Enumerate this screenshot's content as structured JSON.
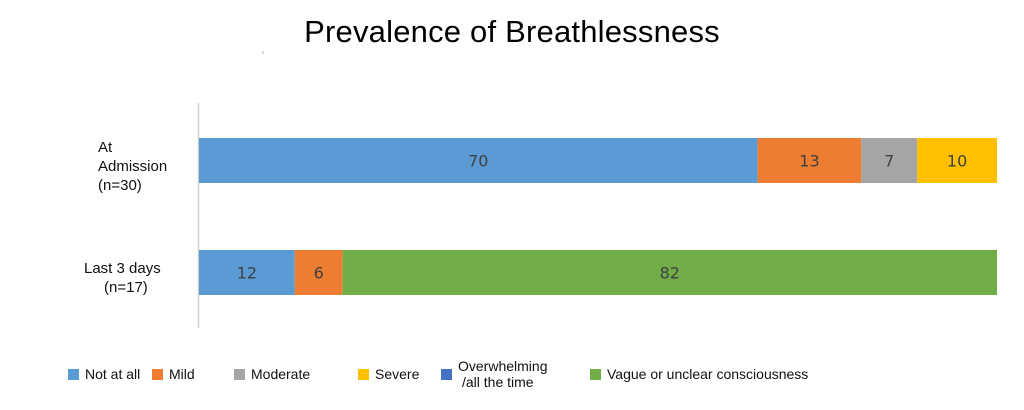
{
  "chart_data": {
    "type": "bar",
    "orientation": "horizontal",
    "stacked": true,
    "title": "Prevalence of Breathlessness",
    "categories": [
      {
        "lines": [
          "At",
          "Admission",
          "(n=30)"
        ]
      },
      {
        "lines": [
          "Last 3 days",
          "(n=17)"
        ]
      }
    ],
    "series": [
      {
        "name": "Not at all",
        "color": "#5B9BD5",
        "values": [
          70,
          12
        ]
      },
      {
        "name": "Mild",
        "color": "#ED7D31",
        "values": [
          13,
          6
        ]
      },
      {
        "name": "Moderate",
        "color": "#A5A5A5",
        "values": [
          7,
          0
        ]
      },
      {
        "name": "Severe",
        "color": "#FFC000",
        "values": [
          10,
          0
        ]
      },
      {
        "name": "Overwhelming /all the time",
        "color": "#4472C4",
        "values": [
          0,
          0
        ]
      },
      {
        "name": "Vague or unclear consciousness",
        "color": "#70AD47",
        "values": [
          0,
          82
        ]
      }
    ],
    "xlim": [
      0,
      100
    ],
    "grid": false,
    "legend_position": "bottom"
  },
  "stray_mark": "‘"
}
